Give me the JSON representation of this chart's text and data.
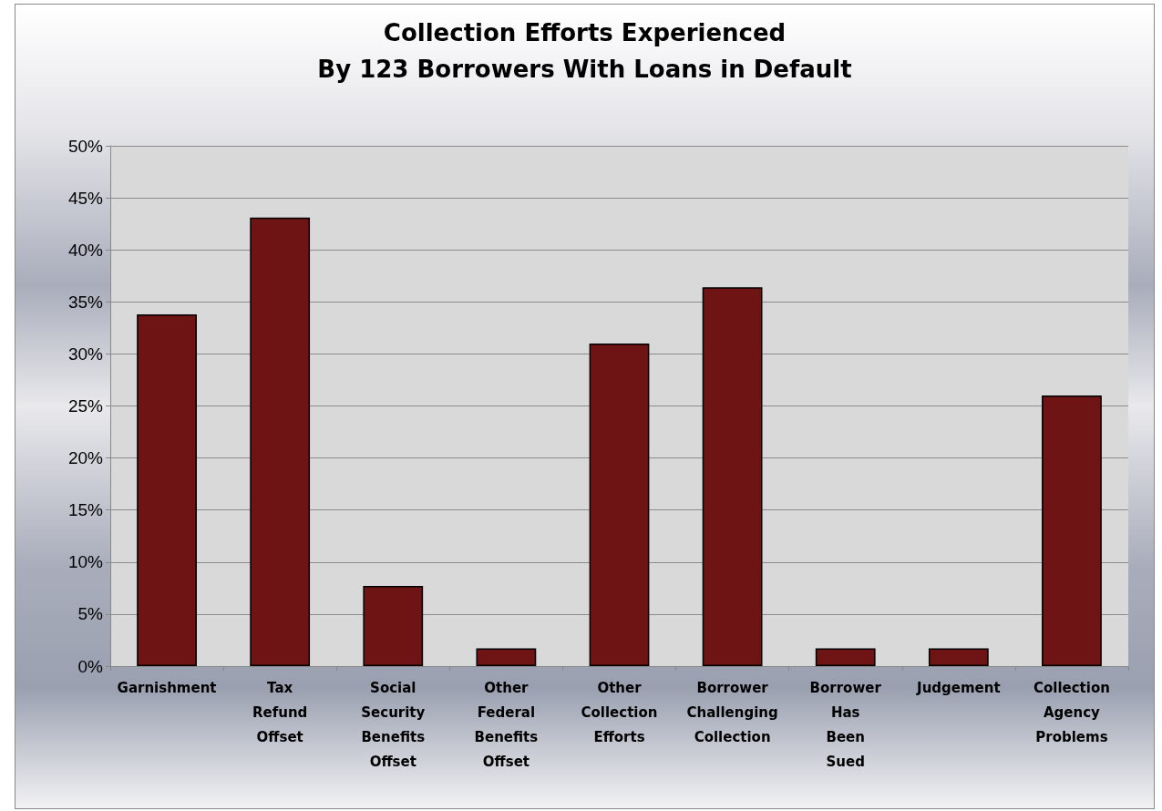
{
  "chart_data": {
    "type": "bar",
    "title": "Collection Efforts Experienced\nBy 123 Borrowers With Loans in Default",
    "categories": [
      "Garnishment",
      "Tax Refund Offset",
      "Social Security Benefits Offset",
      "Other Federal Benefits Offset",
      "Other Collection Efforts",
      "Borrower Challenging Collection",
      "Borrower Has Been Sued",
      "Judgement",
      "Collection Agency Problems"
    ],
    "values": [
      33.8,
      43.1,
      7.7,
      1.7,
      31.0,
      36.4,
      1.7,
      1.7,
      26.0
    ],
    "color": "#6e1414",
    "ylim": [
      0,
      50
    ],
    "yticks": [
      {
        "value": 0,
        "label": "0%"
      },
      {
        "value": 5,
        "label": "5%"
      },
      {
        "value": 10,
        "label": "10%"
      },
      {
        "value": 15,
        "label": "15%"
      },
      {
        "value": 20,
        "label": "20%"
      },
      {
        "value": 25,
        "label": "25%"
      },
      {
        "value": 30,
        "label": "30%"
      },
      {
        "value": 35,
        "label": "35%"
      },
      {
        "value": 40,
        "label": "40%"
      },
      {
        "value": 45,
        "label": "45%"
      },
      {
        "value": 50,
        "label": "50%"
      }
    ],
    "grid": "y"
  }
}
